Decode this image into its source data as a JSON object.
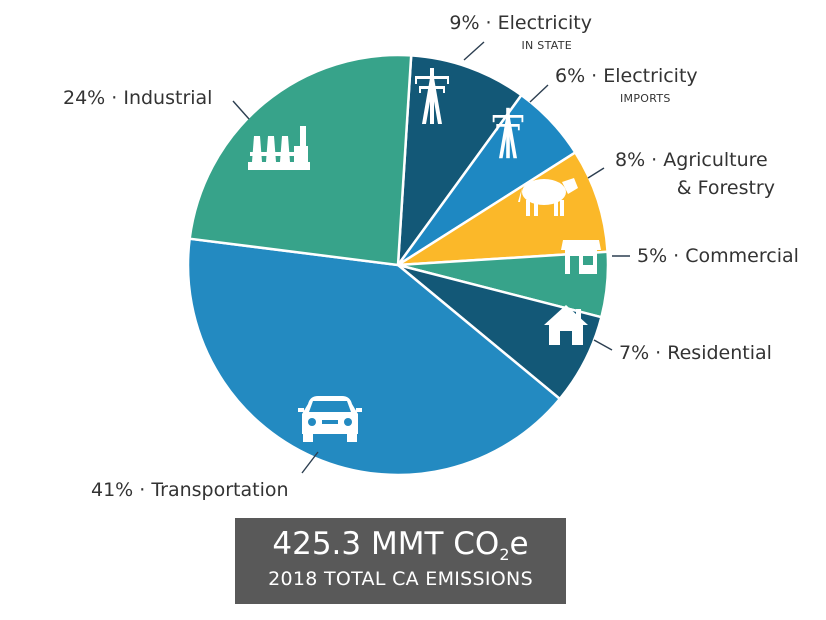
{
  "chart_data": {
    "type": "pie",
    "title": "",
    "slices": [
      {
        "key": "elec-in",
        "value": 9,
        "pct_label": "9% · Electricity",
        "sublabel": "IN STATE",
        "color": "#135877",
        "icon": "power-tower-icon"
      },
      {
        "key": "elec-imp",
        "value": 6,
        "pct_label": "6% · Electricity",
        "sublabel": "IMPORTS",
        "color": "#1e88c2",
        "icon": "power-tower-icon"
      },
      {
        "key": "agri",
        "value": 8,
        "pct_label": "8% · Agriculture",
        "pct_label2": "& Forestry",
        "color": "#fbb829",
        "icon": "cow-icon"
      },
      {
        "key": "comm",
        "value": 5,
        "pct_label": "5% · Commercial",
        "color": "#37a38a",
        "icon": "storefront-icon"
      },
      {
        "key": "resi",
        "value": 7,
        "pct_label": "7% · Residential",
        "color": "#135877",
        "icon": "house-icon"
      },
      {
        "key": "trans",
        "value": 41,
        "pct_label": "41% · Transportation",
        "color": "#238ac1",
        "icon": "car-icon"
      },
      {
        "key": "ind",
        "value": 24,
        "pct_label": "24% · Industrial",
        "color": "#37a38a",
        "icon": "factory-icon"
      }
    ]
  },
  "total": {
    "value_text": "425.3 MMT CO",
    "subscript": "2",
    "suffix": "e",
    "caption": "2018 TOTAL CA EMISSIONS",
    "box_color": "#595959"
  }
}
